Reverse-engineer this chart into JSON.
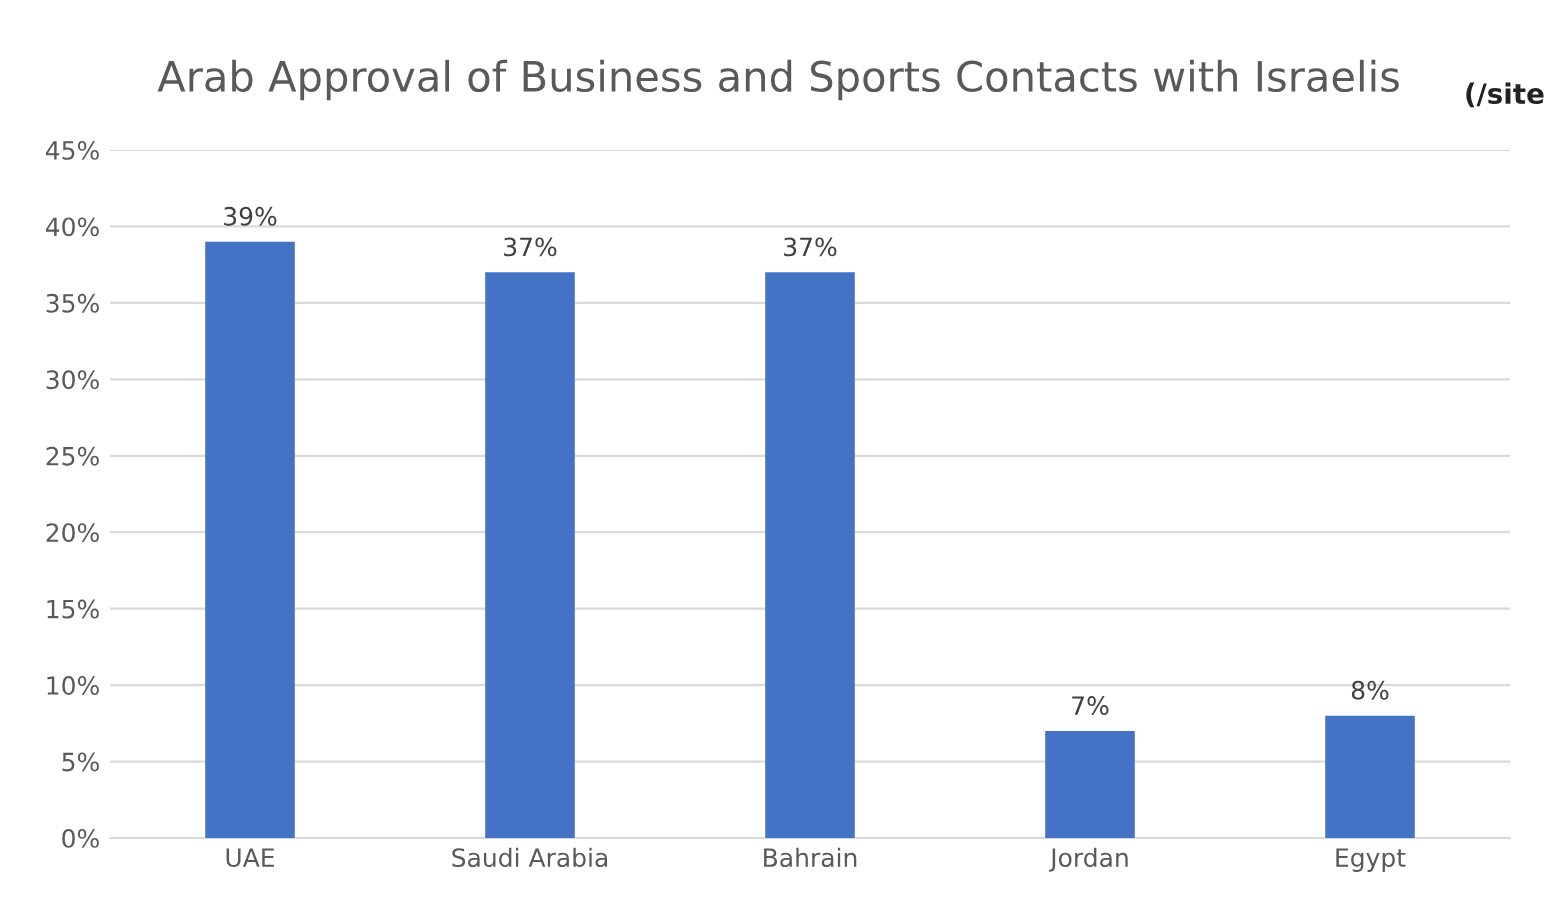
{
  "chart_data": {
    "type": "bar",
    "title": "Arab Approval of Business and Sports Contacts with Israelis",
    "categories": [
      "UAE",
      "Saudi Arabia",
      "Bahrain",
      "Jordan",
      "Egypt"
    ],
    "values": [
      39,
      37,
      37,
      7,
      8
    ],
    "value_labels": [
      "39%",
      "37%",
      "37%",
      "7%",
      "8%"
    ],
    "color": "#4472c4",
    "ylim": [
      0,
      45
    ],
    "yticks": [
      {
        "value": 0,
        "label": "0%"
      },
      {
        "value": 5,
        "label": "5%"
      },
      {
        "value": 10,
        "label": "10%"
      },
      {
        "value": 15,
        "label": "15%"
      },
      {
        "value": 20,
        "label": "20%"
      },
      {
        "value": 25,
        "label": "25%"
      },
      {
        "value": 30,
        "label": "30%"
      },
      {
        "value": 35,
        "label": "35%"
      },
      {
        "value": 40,
        "label": "40%"
      },
      {
        "value": 45,
        "label": "45%"
      }
    ],
    "grid": "y",
    "annotations": [
      "(/site"
    ]
  }
}
